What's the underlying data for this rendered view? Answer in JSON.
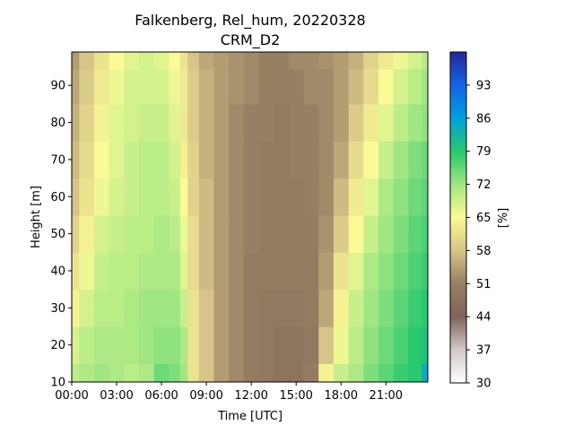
{
  "chart_data": {
    "type": "heatmap",
    "title": "Falkenberg, Rel_hum, 20220328",
    "subtitle": "CRM_D2",
    "xlabel": "Time [UTC]",
    "ylabel": "Height [m]",
    "xlim": [
      0,
      23.8
    ],
    "ylim": [
      10,
      99
    ],
    "xticks": [
      {
        "value": 0,
        "label": "00:00"
      },
      {
        "value": 3,
        "label": "03:00"
      },
      {
        "value": 6,
        "label": "06:00"
      },
      {
        "value": 9,
        "label": "09:00"
      },
      {
        "value": 12,
        "label": "12:00"
      },
      {
        "value": 15,
        "label": "15:00"
      },
      {
        "value": 18,
        "label": "18:00"
      },
      {
        "value": 21,
        "label": "21:00"
      }
    ],
    "yticks": [
      10,
      20,
      30,
      40,
      50,
      60,
      70,
      80,
      90
    ],
    "colorbar": {
      "label": "[%]",
      "range": [
        30,
        100
      ],
      "ticks": [
        30,
        37,
        44,
        51,
        58,
        65,
        72,
        79,
        86,
        93
      ],
      "colormap": "terrain_r"
    },
    "x_hours": [
      0,
      1,
      2,
      3,
      4,
      5,
      6,
      7,
      7.5,
      8,
      9,
      10,
      11,
      12,
      13,
      14,
      15,
      16,
      17,
      18,
      19,
      20,
      21,
      22,
      23,
      23.8
    ],
    "heights_m": [
      10,
      20,
      30,
      40,
      50,
      60,
      70,
      80,
      90,
      99
    ],
    "rel_hum_percent": [
      [
        70,
        71,
        72,
        71,
        70,
        71,
        75,
        74,
        72,
        62,
        58,
        54,
        52,
        50,
        49,
        48,
        48,
        50,
        64,
        69,
        71,
        74,
        76,
        78,
        79,
        84
      ],
      [
        68,
        70,
        71,
        71,
        71,
        72,
        73,
        73,
        71,
        62,
        58,
        54,
        52,
        50,
        49,
        48,
        48,
        49,
        58,
        66,
        70,
        73,
        75,
        77,
        79,
        80
      ],
      [
        64,
        68,
        70,
        70,
        71,
        72,
        72,
        72,
        69,
        62,
        58,
        54,
        52,
        50,
        49,
        49,
        49,
        50,
        55,
        64,
        69,
        72,
        74,
        76,
        78,
        79
      ],
      [
        62,
        66,
        69,
        70,
        70,
        71,
        71,
        71,
        67,
        61,
        57,
        54,
        52,
        50,
        50,
        50,
        50,
        50,
        54,
        62,
        67,
        71,
        73,
        75,
        77,
        78
      ],
      [
        60,
        64,
        68,
        69,
        70,
        70,
        71,
        70,
        66,
        61,
        57,
        54,
        52,
        51,
        50,
        50,
        50,
        50,
        53,
        59,
        65,
        69,
        72,
        74,
        76,
        77
      ],
      [
        58,
        62,
        66,
        68,
        69,
        70,
        70,
        69,
        65,
        60,
        57,
        54,
        52,
        51,
        50,
        50,
        50,
        51,
        52,
        57,
        63,
        67,
        71,
        73,
        75,
        76
      ],
      [
        57,
        61,
        65,
        67,
        69,
        70,
        70,
        68,
        64,
        60,
        56,
        54,
        52,
        51,
        50,
        50,
        51,
        51,
        52,
        55,
        61,
        65,
        69,
        72,
        74,
        75
      ],
      [
        56,
        60,
        64,
        67,
        68,
        69,
        69,
        67,
        63,
        59,
        56,
        54,
        52,
        51,
        51,
        50,
        51,
        51,
        52,
        54,
        59,
        63,
        67,
        70,
        72,
        73
      ],
      [
        55,
        59,
        63,
        66,
        68,
        68,
        68,
        66,
        63,
        59,
        56,
        54,
        53,
        52,
        51,
        51,
        51,
        52,
        52,
        54,
        57,
        61,
        65,
        68,
        70,
        72
      ],
      [
        54,
        58,
        62,
        65,
        67,
        68,
        67,
        65,
        62,
        58,
        55,
        54,
        53,
        52,
        51,
        51,
        52,
        52,
        53,
        54,
        56,
        60,
        63,
        66,
        68,
        70
      ]
    ]
  }
}
